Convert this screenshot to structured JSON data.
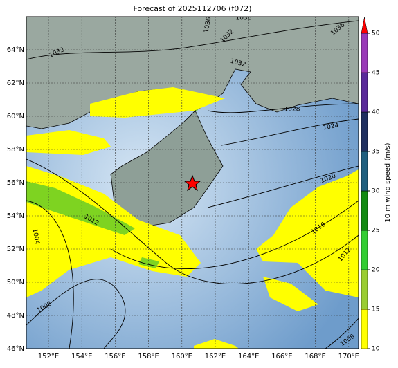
{
  "title": "Forecast of 2025112706 (f072)",
  "colorbar": {
    "label": "10 m wind speed (m/s)",
    "ticks": [
      10,
      15,
      20,
      25,
      30,
      35,
      40,
      45,
      50
    ],
    "colors": [
      "#ffff00",
      "#9acd32",
      "#32cd32",
      "#128a12",
      "#1f5f7f",
      "#1f2f5f",
      "#5a2a9a",
      "#9a3ab8"
    ],
    "extend_color": "#ff0000"
  },
  "lon_ticks": [
    {
      "value": 152,
      "label": "152°E"
    },
    {
      "value": 154,
      "label": "154°E"
    },
    {
      "value": 156,
      "label": "156°E"
    },
    {
      "value": 158,
      "label": "158°E"
    },
    {
      "value": 160,
      "label": "160°E"
    },
    {
      "value": 162,
      "label": "162°E"
    },
    {
      "value": 164,
      "label": "164°E"
    },
    {
      "value": 166,
      "label": "166°E"
    },
    {
      "value": 168,
      "label": "168°E"
    },
    {
      "value": 170,
      "label": "170°E"
    }
  ],
  "lat_ticks": [
    {
      "value": 46,
      "label": "46°N"
    },
    {
      "value": 48,
      "label": "48°N"
    },
    {
      "value": 50,
      "label": "50°N"
    },
    {
      "value": 52,
      "label": "52°N"
    },
    {
      "value": 54,
      "label": "54°N"
    },
    {
      "value": 56,
      "label": "56°N"
    },
    {
      "value": 58,
      "label": "58°N"
    },
    {
      "value": 60,
      "label": "60°N"
    },
    {
      "value": 62,
      "label": "62°N"
    },
    {
      "value": 64,
      "label": "64°N"
    }
  ],
  "isobar_labels": [
    "1032",
    "1036",
    "1036",
    "1032",
    "1032",
    "1036",
    "1028",
    "1024",
    "1020",
    "1016",
    "1012",
    "1012",
    "1004",
    "1008",
    "1008"
  ]
}
